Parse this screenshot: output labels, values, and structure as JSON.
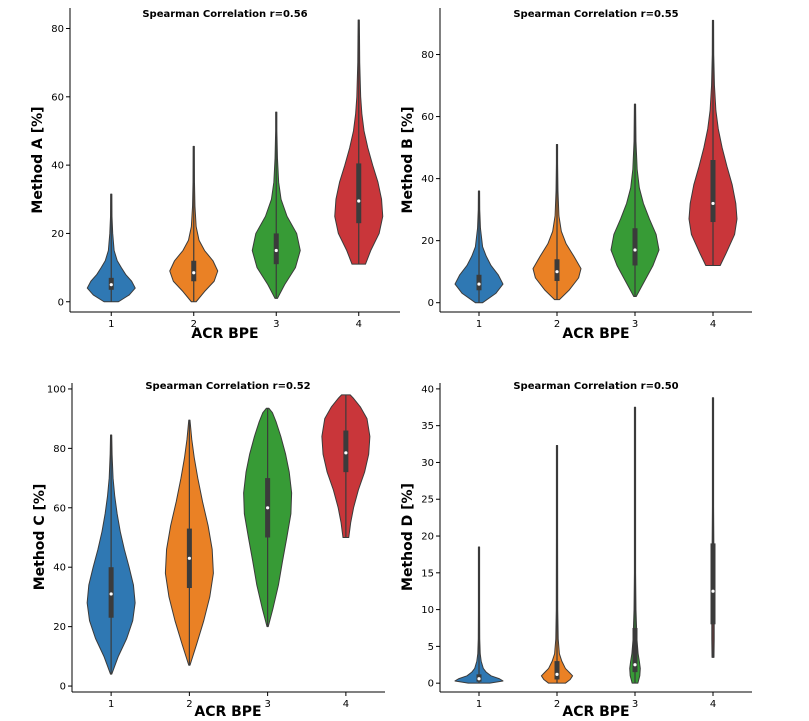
{
  "xlabel": "ACR BPE",
  "colors": {
    "1": "#2f78b3",
    "2": "#ea8125",
    "3": "#379b36",
    "4": "#c9363a"
  },
  "chart_data": [
    {
      "type": "violin",
      "title": "Spearman Correlation r=0.56",
      "xlabel": "ACR BPE",
      "ylabel": "Method A [%]",
      "ylim": [
        -3,
        86
      ],
      "yticks": [
        0,
        20,
        40,
        60,
        80
      ],
      "categories": [
        "1",
        "2",
        "3",
        "4"
      ],
      "series": [
        {
          "category": "1",
          "min": 0,
          "max": 31.5,
          "q1": 3.5,
          "median": 5,
          "q3": 7,
          "color": "#2f78b3",
          "profile": [
            [
              0,
              0.3
            ],
            [
              2,
              0.75
            ],
            [
              4,
              1.0
            ],
            [
              6,
              0.85
            ],
            [
              8,
              0.6
            ],
            [
              10,
              0.42
            ],
            [
              12,
              0.25
            ],
            [
              15,
              0.12
            ],
            [
              20,
              0.06
            ],
            [
              25,
              0.03
            ],
            [
              31.5,
              0.01
            ]
          ]
        },
        {
          "category": "2",
          "min": 0,
          "max": 45.5,
          "q1": 6,
          "median": 8.5,
          "q3": 12,
          "color": "#ea8125",
          "profile": [
            [
              0,
              0.1
            ],
            [
              3,
              0.45
            ],
            [
              6,
              0.85
            ],
            [
              9,
              1.0
            ],
            [
              12,
              0.8
            ],
            [
              15,
              0.45
            ],
            [
              18,
              0.22
            ],
            [
              22,
              0.1
            ],
            [
              28,
              0.05
            ],
            [
              35,
              0.03
            ],
            [
              45.5,
              0.01
            ]
          ]
        },
        {
          "category": "3",
          "min": 1,
          "max": 55.5,
          "q1": 11,
          "median": 15,
          "q3": 20,
          "color": "#379b36",
          "profile": [
            [
              1,
              0.05
            ],
            [
              5,
              0.35
            ],
            [
              10,
              0.8
            ],
            [
              15,
              1.0
            ],
            [
              20,
              0.85
            ],
            [
              25,
              0.45
            ],
            [
              30,
              0.2
            ],
            [
              35,
              0.1
            ],
            [
              42,
              0.05
            ],
            [
              50,
              0.02
            ],
            [
              55.5,
              0.01
            ]
          ]
        },
        {
          "category": "4",
          "min": 11,
          "max": 82.5,
          "q1": 23,
          "median": 29.5,
          "q3": 40.5,
          "color": "#c9363a",
          "profile": [
            [
              11,
              0.28
            ],
            [
              15,
              0.5
            ],
            [
              20,
              0.85
            ],
            [
              25,
              1.0
            ],
            [
              30,
              0.95
            ],
            [
              35,
              0.8
            ],
            [
              40,
              0.58
            ],
            [
              45,
              0.38
            ],
            [
              50,
              0.22
            ],
            [
              55,
              0.13
            ],
            [
              60,
              0.08
            ],
            [
              70,
              0.04
            ],
            [
              82.5,
              0.01
            ]
          ]
        }
      ]
    },
    {
      "type": "violin",
      "title": "Spearman Correlation r=0.55",
      "xlabel": "ACR BPE",
      "ylabel": "Method B [%]",
      "ylim": [
        -3,
        95
      ],
      "yticks": [
        0,
        20,
        40,
        60,
        80
      ],
      "categories": [
        "1",
        "2",
        "3",
        "4"
      ],
      "series": [
        {
          "category": "1",
          "min": 0,
          "max": 36,
          "q1": 4,
          "median": 6,
          "q3": 9,
          "color": "#2f78b3",
          "profile": [
            [
              0,
              0.15
            ],
            [
              3,
              0.7
            ],
            [
              6,
              1.0
            ],
            [
              9,
              0.8
            ],
            [
              12,
              0.5
            ],
            [
              15,
              0.3
            ],
            [
              18,
              0.15
            ],
            [
              24,
              0.06
            ],
            [
              30,
              0.03
            ],
            [
              36,
              0.01
            ]
          ]
        },
        {
          "category": "2",
          "min": 1,
          "max": 51,
          "q1": 7,
          "median": 10,
          "q3": 14,
          "color": "#ea8125",
          "profile": [
            [
              1,
              0.1
            ],
            [
              4,
              0.5
            ],
            [
              8,
              0.9
            ],
            [
              11,
              1.0
            ],
            [
              15,
              0.7
            ],
            [
              19,
              0.38
            ],
            [
              23,
              0.18
            ],
            [
              28,
              0.08
            ],
            [
              36,
              0.04
            ],
            [
              45,
              0.02
            ],
            [
              51,
              0.01
            ]
          ]
        },
        {
          "category": "3",
          "min": 2,
          "max": 64,
          "q1": 12,
          "median": 17,
          "q3": 24,
          "color": "#379b36",
          "profile": [
            [
              2,
              0.05
            ],
            [
              7,
              0.4
            ],
            [
              12,
              0.75
            ],
            [
              17,
              1.0
            ],
            [
              22,
              0.88
            ],
            [
              27,
              0.6
            ],
            [
              32,
              0.35
            ],
            [
              37,
              0.18
            ],
            [
              43,
              0.09
            ],
            [
              52,
              0.04
            ],
            [
              64,
              0.01
            ]
          ]
        },
        {
          "category": "4",
          "min": 12,
          "max": 91,
          "q1": 26,
          "median": 32,
          "q3": 46,
          "color": "#c9363a",
          "profile": [
            [
              12,
              0.3
            ],
            [
              16,
              0.55
            ],
            [
              22,
              0.9
            ],
            [
              27,
              1.0
            ],
            [
              32,
              0.95
            ],
            [
              38,
              0.8
            ],
            [
              44,
              0.58
            ],
            [
              50,
              0.38
            ],
            [
              56,
              0.22
            ],
            [
              62,
              0.12
            ],
            [
              70,
              0.06
            ],
            [
              80,
              0.03
            ],
            [
              91,
              0.01
            ]
          ]
        }
      ]
    },
    {
      "type": "violin",
      "title": "Spearman Correlation r=0.52",
      "xlabel": "ACR BPE",
      "ylabel": "Method C [%]",
      "ylim": [
        -2,
        102
      ],
      "yticks": [
        0,
        20,
        40,
        60,
        80,
        100
      ],
      "categories": [
        "1",
        "2",
        "3",
        "4"
      ],
      "series": [
        {
          "category": "1",
          "min": 4,
          "max": 84.5,
          "q1": 23,
          "median": 31,
          "q3": 40,
          "color": "#2f78b3",
          "profile": [
            [
              4,
              0.02
            ],
            [
              10,
              0.3
            ],
            [
              16,
              0.65
            ],
            [
              22,
              0.9
            ],
            [
              28,
              1.0
            ],
            [
              34,
              0.93
            ],
            [
              40,
              0.75
            ],
            [
              46,
              0.55
            ],
            [
              52,
              0.38
            ],
            [
              58,
              0.25
            ],
            [
              64,
              0.15
            ],
            [
              70,
              0.08
            ],
            [
              78,
              0.04
            ],
            [
              84.5,
              0.01
            ]
          ]
        },
        {
          "category": "2",
          "min": 7,
          "max": 89.5,
          "q1": 33,
          "median": 43,
          "q3": 53,
          "color": "#ea8125",
          "profile": [
            [
              7,
              0.02
            ],
            [
              14,
              0.3
            ],
            [
              22,
              0.6
            ],
            [
              30,
              0.85
            ],
            [
              38,
              1.0
            ],
            [
              46,
              0.95
            ],
            [
              54,
              0.78
            ],
            [
              62,
              0.55
            ],
            [
              70,
              0.35
            ],
            [
              77,
              0.2
            ],
            [
              83,
              0.1
            ],
            [
              89.5,
              0.02
            ]
          ]
        },
        {
          "category": "3",
          "min": 20,
          "max": 93.5,
          "q1": 50,
          "median": 60,
          "q3": 70,
          "color": "#379b36",
          "profile": [
            [
              20,
              0.02
            ],
            [
              26,
              0.22
            ],
            [
              34,
              0.45
            ],
            [
              42,
              0.62
            ],
            [
              50,
              0.8
            ],
            [
              58,
              0.97
            ],
            [
              65,
              1.0
            ],
            [
              72,
              0.9
            ],
            [
              78,
              0.75
            ],
            [
              84,
              0.55
            ],
            [
              89,
              0.35
            ],
            [
              92,
              0.2
            ],
            [
              93.5,
              0.05
            ]
          ]
        },
        {
          "category": "4",
          "min": 50,
          "max": 98,
          "q1": 72,
          "median": 78.5,
          "q3": 86,
          "color": "#c9363a",
          "profile": [
            [
              50,
              0.12
            ],
            [
              55,
              0.2
            ],
            [
              60,
              0.32
            ],
            [
              66,
              0.52
            ],
            [
              72,
              0.78
            ],
            [
              78,
              0.95
            ],
            [
              84,
              1.0
            ],
            [
              90,
              0.88
            ],
            [
              94,
              0.6
            ],
            [
              97,
              0.3
            ],
            [
              98,
              0.18
            ]
          ]
        }
      ]
    },
    {
      "type": "violin",
      "title": "Spearman Correlation r=0.50",
      "xlabel": "ACR BPE",
      "ylabel": "Method D [%]",
      "ylim": [
        -1.2,
        40.8
      ],
      "yticks": [
        0,
        5,
        10,
        15,
        20,
        25,
        30,
        35,
        40
      ],
      "categories": [
        "1",
        "2",
        "3",
        "4"
      ],
      "series": [
        {
          "category": "1",
          "min": 0,
          "max": 18.5,
          "q1": 0.2,
          "median": 0.6,
          "q3": 1.2,
          "color": "#2f78b3",
          "profile": [
            [
              0,
              0.45
            ],
            [
              0.3,
              1.0
            ],
            [
              0.6,
              0.85
            ],
            [
              1,
              0.5
            ],
            [
              1.5,
              0.3
            ],
            [
              2,
              0.18
            ],
            [
              3,
              0.09
            ],
            [
              4,
              0.05
            ],
            [
              6,
              0.03
            ],
            [
              10,
              0.015
            ],
            [
              18.5,
              0.005
            ]
          ]
        },
        {
          "category": "2",
          "min": 0,
          "max": 32.3,
          "q1": 0.5,
          "median": 1.2,
          "q3": 3,
          "color": "#ea8125",
          "profile": [
            [
              0,
              0.35
            ],
            [
              0.5,
              0.55
            ],
            [
              1,
              0.65
            ],
            [
              1.5,
              0.5
            ],
            [
              2,
              0.35
            ],
            [
              3,
              0.2
            ],
            [
              4,
              0.1
            ],
            [
              6,
              0.05
            ],
            [
              10,
              0.03
            ],
            [
              20,
              0.015
            ],
            [
              32.3,
              0.005
            ]
          ]
        },
        {
          "category": "3",
          "min": 0,
          "max": 37.5,
          "q1": 1.5,
          "median": 2.5,
          "q3": 7.5,
          "color": "#379b36",
          "profile": [
            [
              0,
              0.12
            ],
            [
              1,
              0.2
            ],
            [
              2,
              0.22
            ],
            [
              3,
              0.18
            ],
            [
              4,
              0.13
            ],
            [
              6,
              0.08
            ],
            [
              8,
              0.06
            ],
            [
              10,
              0.04
            ],
            [
              15,
              0.025
            ],
            [
              25,
              0.012
            ],
            [
              37.5,
              0.004
            ]
          ]
        },
        {
          "category": "4",
          "min": 3.5,
          "max": 38.8,
          "q1": 8,
          "median": 12.5,
          "q3": 19,
          "color": "#c9363a",
          "profile": [
            [
              3.5,
              0.04
            ],
            [
              6,
              0.05
            ],
            [
              8,
              0.05
            ],
            [
              10,
              0.05
            ],
            [
              13,
              0.045
            ],
            [
              16,
              0.04
            ],
            [
              19,
              0.035
            ],
            [
              24,
              0.02
            ],
            [
              30,
              0.012
            ],
            [
              38.8,
              0.004
            ]
          ]
        }
      ]
    }
  ]
}
